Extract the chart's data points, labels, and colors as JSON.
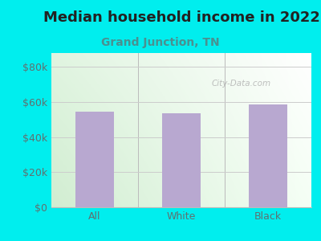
{
  "title": "Median household income in 2022",
  "subtitle": "Grand Junction, TN",
  "categories": [
    "All",
    "White",
    "Black"
  ],
  "values": [
    54500,
    53500,
    58500
  ],
  "bar_color": "#b8a8d0",
  "background_outer": "#00eeee",
  "title_fontsize": 13,
  "subtitle_fontsize": 10,
  "tick_label_color": "#607070",
  "subtitle_color": "#4a9090",
  "ylabel_ticks": [
    0,
    20000,
    40000,
    60000,
    80000
  ],
  "ylabel_labels": [
    "$0",
    "$20k",
    "$40k",
    "$60k",
    "$80k"
  ],
  "ylim": [
    0,
    88000
  ],
  "watermark": "City-Data.com"
}
